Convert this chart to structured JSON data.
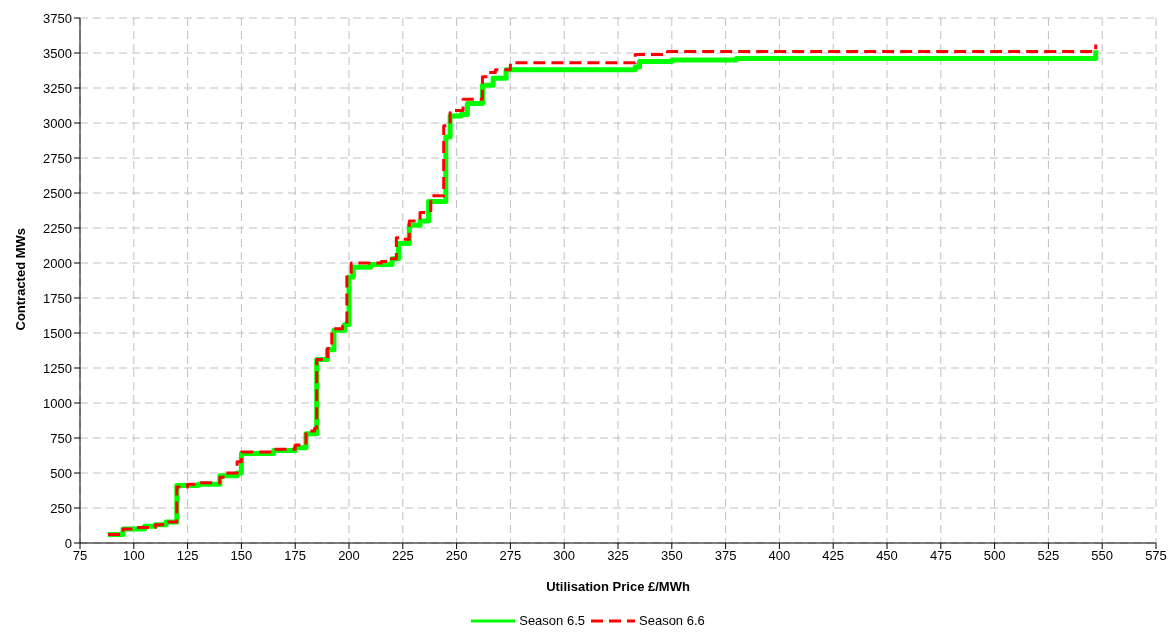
{
  "chart_data": {
    "type": "step",
    "xlabel": "Utilisation Price £/MWh",
    "ylabel": "Contracted MWs",
    "xlim": [
      75,
      575
    ],
    "xticks": [
      75,
      100,
      125,
      150,
      175,
      200,
      225,
      250,
      275,
      300,
      325,
      350,
      375,
      400,
      425,
      450,
      475,
      500,
      525,
      550,
      575
    ],
    "ylim": [
      0,
      3750
    ],
    "yticks": [
      0,
      250,
      500,
      750,
      1000,
      1250,
      1500,
      1750,
      2000,
      2250,
      2500,
      2750,
      3000,
      3250,
      3500,
      3750
    ],
    "grid": true,
    "legend": "bottom",
    "marker": "none",
    "series": [
      {
        "name": "Season 6.5",
        "color": "#00ff00",
        "line_style": "solid",
        "x": [
          88,
          95,
          105,
          110,
          115,
          120,
          130,
          140,
          148,
          150,
          165,
          175,
          180,
          185,
          190,
          193,
          198,
          200,
          202,
          210,
          220,
          223,
          228,
          233,
          237,
          245,
          247,
          252,
          255,
          262,
          267,
          273,
          333,
          335,
          350,
          380,
          547,
          547
        ],
        "values": [
          60,
          100,
          120,
          130,
          150,
          410,
          420,
          480,
          500,
          640,
          660,
          680,
          780,
          1310,
          1380,
          1520,
          1560,
          1900,
          1970,
          1990,
          2030,
          2140,
          2270,
          2300,
          2440,
          2900,
          3050,
          3060,
          3140,
          3270,
          3320,
          3380,
          3400,
          3440,
          3450,
          3460,
          3460,
          3520
        ]
      },
      {
        "name": "Season 6.6",
        "color": "#ff0000",
        "line_style": "dashed",
        "x": [
          88,
          95,
          100,
          110,
          115,
          120,
          125,
          130,
          140,
          143,
          148,
          150,
          165,
          175,
          180,
          184,
          185,
          188,
          190,
          192,
          197,
          199,
          201,
          215,
          218,
          222,
          225,
          228,
          233,
          238,
          244,
          247,
          253,
          262,
          265,
          268,
          275,
          333,
          348,
          547,
          547
        ],
        "values": [
          60,
          100,
          110,
          130,
          150,
          400,
          420,
          430,
          470,
          500,
          580,
          650,
          670,
          700,
          800,
          820,
          1310,
          1320,
          1390,
          1530,
          1550,
          1920,
          2000,
          2010,
          2030,
          2180,
          2170,
          2300,
          2360,
          2480,
          2980,
          3090,
          3170,
          3330,
          3360,
          3380,
          3430,
          3490,
          3510,
          3510,
          3560
        ]
      }
    ]
  }
}
